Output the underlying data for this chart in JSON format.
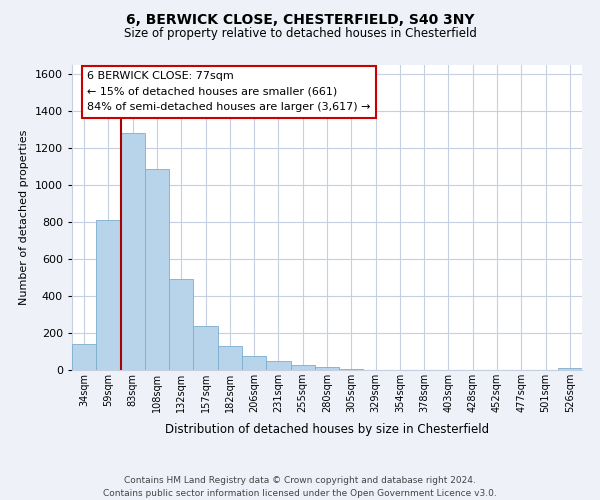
{
  "title1": "6, BERWICK CLOSE, CHESTERFIELD, S40 3NY",
  "title2": "Size of property relative to detached houses in Chesterfield",
  "xlabel": "Distribution of detached houses by size in Chesterfield",
  "ylabel": "Number of detached properties",
  "bar_labels": [
    "34sqm",
    "59sqm",
    "83sqm",
    "108sqm",
    "132sqm",
    "157sqm",
    "182sqm",
    "206sqm",
    "231sqm",
    "255sqm",
    "280sqm",
    "305sqm",
    "329sqm",
    "354sqm",
    "378sqm",
    "403sqm",
    "428sqm",
    "452sqm",
    "477sqm",
    "501sqm",
    "526sqm"
  ],
  "bar_values": [
    140,
    810,
    1280,
    1090,
    490,
    240,
    128,
    78,
    48,
    28,
    18,
    8,
    0,
    0,
    0,
    0,
    0,
    0,
    0,
    0,
    12
  ],
  "bar_color": "#b8d4ea",
  "bar_edge_color": "#7aaecf",
  "vline_color": "#aa0000",
  "annotation_line1": "6 BERWICK CLOSE: 77sqm",
  "annotation_line2": "← 15% of detached houses are smaller (661)",
  "annotation_line3": "84% of semi-detached houses are larger (3,617) →",
  "ylim": [
    0,
    1650
  ],
  "yticks": [
    0,
    200,
    400,
    600,
    800,
    1000,
    1200,
    1400,
    1600
  ],
  "footer_text": "Contains HM Land Registry data © Crown copyright and database right 2024.\nContains public sector information licensed under the Open Government Licence v3.0.",
  "bg_color": "#eef2f8",
  "plot_bg_color": "#ffffff",
  "grid_color": "#c5cfe0"
}
